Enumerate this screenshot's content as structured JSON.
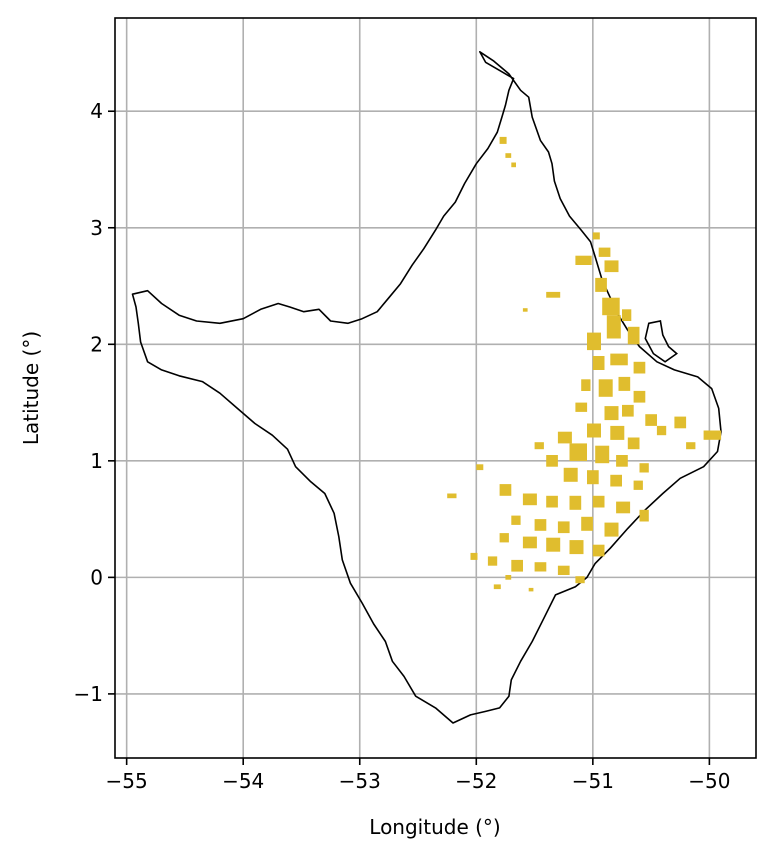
{
  "chart_data": {
    "type": "map",
    "xlabel": "Longitude (°)",
    "ylabel": "Latitude (°)",
    "xlim": [
      -55.1,
      -49.6
    ],
    "ylim": [
      -1.55,
      4.8
    ],
    "x_ticks": [
      -55,
      -54,
      -53,
      -52,
      -51,
      -50
    ],
    "x_tick_labels": [
      "−55",
      "−54",
      "−53",
      "−52",
      "−51",
      "−50"
    ],
    "y_ticks": [
      -1,
      0,
      1,
      2,
      3,
      4
    ],
    "y_tick_labels": [
      "−1",
      "0",
      "1",
      "2",
      "3",
      "4"
    ],
    "grid": true,
    "colors": {
      "outline": "#000000",
      "patches": "#e0bd2e",
      "grid": "#b0b0b0"
    },
    "outline": [
      [
        -51.97,
        4.51
      ],
      [
        -51.85,
        4.43
      ],
      [
        -51.72,
        4.32
      ],
      [
        -51.62,
        4.18
      ],
      [
        -51.55,
        4.12
      ],
      [
        -51.52,
        3.95
      ],
      [
        -51.45,
        3.75
      ],
      [
        -51.38,
        3.65
      ],
      [
        -51.35,
        3.55
      ],
      [
        -51.33,
        3.4
      ],
      [
        -51.28,
        3.25
      ],
      [
        -51.2,
        3.1
      ],
      [
        -51.1,
        2.98
      ],
      [
        -51.02,
        2.88
      ],
      [
        -50.98,
        2.75
      ],
      [
        -50.92,
        2.55
      ],
      [
        -50.85,
        2.4
      ],
      [
        -50.78,
        2.25
      ],
      [
        -50.7,
        2.12
      ],
      [
        -50.6,
        1.98
      ],
      [
        -50.45,
        1.85
      ],
      [
        -50.3,
        1.78
      ],
      [
        -50.1,
        1.72
      ],
      [
        -49.98,
        1.62
      ],
      [
        -49.92,
        1.45
      ],
      [
        -49.9,
        1.25
      ],
      [
        -49.93,
        1.08
      ],
      [
        -50.05,
        0.95
      ],
      [
        -50.25,
        0.85
      ],
      [
        -50.4,
        0.72
      ],
      [
        -50.55,
        0.58
      ],
      [
        -50.7,
        0.42
      ],
      [
        -50.85,
        0.25
      ],
      [
        -50.98,
        0.12
      ],
      [
        -51.05,
        0.0
      ],
      [
        -51.15,
        -0.08
      ],
      [
        -51.32,
        -0.15
      ],
      [
        -51.42,
        -0.35
      ],
      [
        -51.52,
        -0.55
      ],
      [
        -51.62,
        -0.72
      ],
      [
        -51.7,
        -0.88
      ],
      [
        -51.72,
        -1.02
      ],
      [
        -51.8,
        -1.12
      ],
      [
        -51.92,
        -1.15
      ],
      [
        -52.05,
        -1.18
      ],
      [
        -52.2,
        -1.25
      ],
      [
        -52.35,
        -1.12
      ],
      [
        -52.52,
        -1.02
      ],
      [
        -52.62,
        -0.85
      ],
      [
        -52.72,
        -0.72
      ],
      [
        -52.78,
        -0.55
      ],
      [
        -52.88,
        -0.4
      ],
      [
        -52.98,
        -0.22
      ],
      [
        -53.08,
        -0.05
      ],
      [
        -53.15,
        0.15
      ],
      [
        -53.18,
        0.35
      ],
      [
        -53.22,
        0.55
      ],
      [
        -53.3,
        0.72
      ],
      [
        -53.42,
        0.82
      ],
      [
        -53.55,
        0.95
      ],
      [
        -53.62,
        1.1
      ],
      [
        -53.75,
        1.22
      ],
      [
        -53.9,
        1.32
      ],
      [
        -54.05,
        1.45
      ],
      [
        -54.2,
        1.58
      ],
      [
        -54.35,
        1.68
      ],
      [
        -54.55,
        1.73
      ],
      [
        -54.7,
        1.78
      ],
      [
        -54.82,
        1.85
      ],
      [
        -54.88,
        2.02
      ],
      [
        -54.9,
        2.18
      ],
      [
        -54.92,
        2.32
      ],
      [
        -54.95,
        2.43
      ],
      [
        -54.82,
        2.46
      ],
      [
        -54.7,
        2.35
      ],
      [
        -54.55,
        2.25
      ],
      [
        -54.4,
        2.2
      ],
      [
        -54.2,
        2.18
      ],
      [
        -54.0,
        2.22
      ],
      [
        -53.85,
        2.3
      ],
      [
        -53.7,
        2.35
      ],
      [
        -53.6,
        2.32
      ],
      [
        -53.48,
        2.28
      ],
      [
        -53.35,
        2.3
      ],
      [
        -53.25,
        2.2
      ],
      [
        -53.1,
        2.18
      ],
      [
        -52.98,
        2.22
      ],
      [
        -52.85,
        2.28
      ],
      [
        -52.75,
        2.4
      ],
      [
        -52.65,
        2.52
      ],
      [
        -52.55,
        2.68
      ],
      [
        -52.45,
        2.82
      ],
      [
        -52.35,
        2.98
      ],
      [
        -52.28,
        3.1
      ],
      [
        -52.18,
        3.22
      ],
      [
        -52.1,
        3.38
      ],
      [
        -52.0,
        3.55
      ],
      [
        -51.9,
        3.68
      ],
      [
        -51.82,
        3.82
      ],
      [
        -51.78,
        3.95
      ],
      [
        -51.75,
        4.05
      ],
      [
        -51.72,
        4.18
      ],
      [
        -51.68,
        4.28
      ],
      [
        -51.8,
        4.35
      ],
      [
        -51.92,
        4.42
      ],
      [
        -51.97,
        4.51
      ]
    ],
    "islands": [
      [
        [
          -50.52,
          2.18
        ],
        [
          -50.42,
          2.2
        ],
        [
          -50.4,
          2.08
        ],
        [
          -50.35,
          1.98
        ],
        [
          -50.28,
          1.92
        ],
        [
          -50.38,
          1.85
        ],
        [
          -50.48,
          1.92
        ],
        [
          -50.55,
          2.05
        ],
        [
          -50.52,
          2.18
        ]
      ]
    ],
    "patches": [
      [
        -51.8,
        3.72,
        0.06,
        0.06
      ],
      [
        -51.75,
        3.6,
        0.05,
        0.04
      ],
      [
        -51.7,
        3.52,
        0.04,
        0.04
      ],
      [
        -51.0,
        2.9,
        0.06,
        0.06
      ],
      [
        -50.95,
        2.75,
        0.1,
        0.08
      ],
      [
        -50.9,
        2.62,
        0.12,
        0.1
      ],
      [
        -51.15,
        2.68,
        0.14,
        0.08
      ],
      [
        -50.98,
        2.45,
        0.1,
        0.12
      ],
      [
        -51.4,
        2.4,
        0.12,
        0.05
      ],
      [
        -51.6,
        2.28,
        0.04,
        0.03
      ],
      [
        -50.92,
        2.25,
        0.15,
        0.15
      ],
      [
        -50.88,
        2.05,
        0.12,
        0.2
      ],
      [
        -50.75,
        2.2,
        0.08,
        0.1
      ],
      [
        -50.7,
        2.0,
        0.1,
        0.15
      ],
      [
        -51.05,
        1.95,
        0.12,
        0.15
      ],
      [
        -51.0,
        1.78,
        0.1,
        0.12
      ],
      [
        -50.85,
        1.82,
        0.15,
        0.1
      ],
      [
        -50.65,
        1.75,
        0.1,
        0.1
      ],
      [
        -51.1,
        1.6,
        0.08,
        0.1
      ],
      [
        -50.95,
        1.55,
        0.12,
        0.15
      ],
      [
        -50.78,
        1.6,
        0.1,
        0.12
      ],
      [
        -50.65,
        1.5,
        0.1,
        0.1
      ],
      [
        -51.15,
        1.42,
        0.1,
        0.08
      ],
      [
        -50.9,
        1.35,
        0.12,
        0.12
      ],
      [
        -50.75,
        1.38,
        0.1,
        0.1
      ],
      [
        -50.55,
        1.3,
        0.1,
        0.1
      ],
      [
        -50.45,
        1.22,
        0.08,
        0.08
      ],
      [
        -50.3,
        1.28,
        0.1,
        0.1
      ],
      [
        -50.05,
        1.18,
        0.15,
        0.08
      ],
      [
        -50.2,
        1.1,
        0.08,
        0.06
      ],
      [
        -51.05,
        1.2,
        0.12,
        0.12
      ],
      [
        -50.85,
        1.18,
        0.12,
        0.12
      ],
      [
        -50.7,
        1.1,
        0.1,
        0.1
      ],
      [
        -51.3,
        1.15,
        0.12,
        0.1
      ],
      [
        -51.2,
        1.0,
        0.15,
        0.15
      ],
      [
        -50.98,
        0.98,
        0.12,
        0.15
      ],
      [
        -50.8,
        0.95,
        0.1,
        0.1
      ],
      [
        -50.6,
        0.9,
        0.08,
        0.08
      ],
      [
        -51.5,
        1.1,
        0.08,
        0.06
      ],
      [
        -51.4,
        0.95,
        0.1,
        0.1
      ],
      [
        -51.25,
        0.82,
        0.12,
        0.12
      ],
      [
        -51.05,
        0.8,
        0.1,
        0.12
      ],
      [
        -50.85,
        0.78,
        0.1,
        0.1
      ],
      [
        -50.65,
        0.75,
        0.08,
        0.08
      ],
      [
        -51.8,
        0.7,
        0.1,
        0.1
      ],
      [
        -52.0,
        0.92,
        0.06,
        0.05
      ],
      [
        -52.25,
        0.68,
        0.08,
        0.04
      ],
      [
        -51.6,
        0.62,
        0.12,
        0.1
      ],
      [
        -51.4,
        0.6,
        0.1,
        0.1
      ],
      [
        -51.2,
        0.58,
        0.1,
        0.12
      ],
      [
        -51.0,
        0.6,
        0.1,
        0.1
      ],
      [
        -50.8,
        0.55,
        0.12,
        0.1
      ],
      [
        -50.6,
        0.48,
        0.08,
        0.1
      ],
      [
        -51.7,
        0.45,
        0.08,
        0.08
      ],
      [
        -51.5,
        0.4,
        0.1,
        0.1
      ],
      [
        -51.3,
        0.38,
        0.1,
        0.1
      ],
      [
        -51.1,
        0.4,
        0.1,
        0.12
      ],
      [
        -50.9,
        0.35,
        0.12,
        0.12
      ],
      [
        -51.8,
        0.3,
        0.08,
        0.08
      ],
      [
        -51.6,
        0.25,
        0.12,
        0.1
      ],
      [
        -51.4,
        0.22,
        0.12,
        0.12
      ],
      [
        -51.2,
        0.2,
        0.12,
        0.12
      ],
      [
        -51.0,
        0.18,
        0.1,
        0.1
      ],
      [
        -52.05,
        0.15,
        0.06,
        0.06
      ],
      [
        -51.9,
        0.1,
        0.08,
        0.08
      ],
      [
        -51.7,
        0.05,
        0.1,
        0.1
      ],
      [
        -51.5,
        0.05,
        0.1,
        0.08
      ],
      [
        -51.3,
        0.02,
        0.1,
        0.08
      ],
      [
        -51.15,
        -0.05,
        0.08,
        0.06
      ],
      [
        -51.85,
        -0.1,
        0.06,
        0.04
      ],
      [
        -51.55,
        -0.12,
        0.04,
        0.03
      ],
      [
        -51.75,
        -0.02,
        0.05,
        0.04
      ]
    ]
  }
}
